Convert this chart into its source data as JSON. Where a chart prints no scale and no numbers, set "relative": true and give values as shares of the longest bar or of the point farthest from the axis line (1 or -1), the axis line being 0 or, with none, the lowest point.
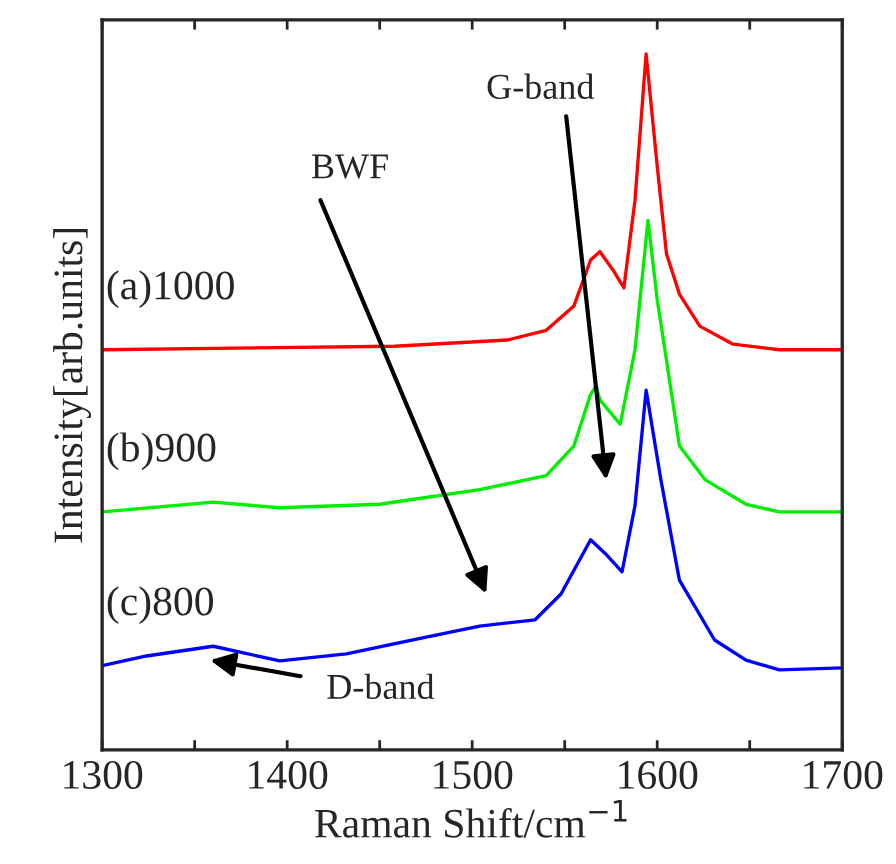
{
  "chart_data": {
    "type": "line",
    "xlabel": "Raman Shift/cm$^{−1}$",
    "ylabel": "Intensity[arb.units]",
    "relative": true,
    "xlim": [
      1300,
      1700
    ],
    "xticks": [
      1300,
      {
        "value": 1350,
        "label": null
      },
      1400,
      {
        "value": 1450,
        "label": null
      },
      1500,
      {
        "value": 1550,
        "label": null
      },
      1600,
      {
        "value": 1650,
        "label": null
      },
      1700
    ],
    "series": [
      {
        "name": "(a)1000",
        "color": "#ff0000",
        "x": [
          1300,
          1458,
          1519,
          1540,
          1555,
          1564,
          1569,
          1576,
          1582,
          1588,
          1594,
          1600,
          1605,
          1612,
          1623,
          1641,
          1666,
          1700
        ],
        "values": [
          0.575,
          0.58,
          0.589,
          0.603,
          0.638,
          0.704,
          0.716,
          0.69,
          0.664,
          0.79,
          1.0,
          0.839,
          0.713,
          0.655,
          0.609,
          0.583,
          0.575,
          0.575
        ]
      },
      {
        "name": "(b)900",
        "color": "#00ee00",
        "x": [
          1300,
          1360,
          1396,
          1450,
          1504,
          1540,
          1555,
          1564,
          1567,
          1569,
          1580,
          1588,
          1595,
          1600,
          1605,
          1612,
          1626,
          1648,
          1666,
          1700
        ],
        "values": [
          0.342,
          0.356,
          0.348,
          0.353,
          0.374,
          0.394,
          0.437,
          0.511,
          0.523,
          0.503,
          0.468,
          0.575,
          0.761,
          0.647,
          0.56,
          0.437,
          0.388,
          0.353,
          0.342,
          0.342
        ]
      },
      {
        "name": "(c)800",
        "color": "#0000ff",
        "x": [
          1300,
          1324,
          1360,
          1396,
          1432,
          1468,
          1504,
          1534,
          1548,
          1564,
          1572,
          1581,
          1588,
          1594,
          1602,
          1612,
          1631,
          1648,
          1666,
          1700
        ],
        "values": [
          0.121,
          0.135,
          0.149,
          0.128,
          0.138,
          0.158,
          0.178,
          0.187,
          0.224,
          0.302,
          0.282,
          0.256,
          0.351,
          0.517,
          0.388,
          0.244,
          0.158,
          0.129,
          0.115,
          0.118
        ]
      }
    ],
    "annotations": [
      "BWF",
      "G-band",
      "D-band"
    ],
    "legend": false
  }
}
